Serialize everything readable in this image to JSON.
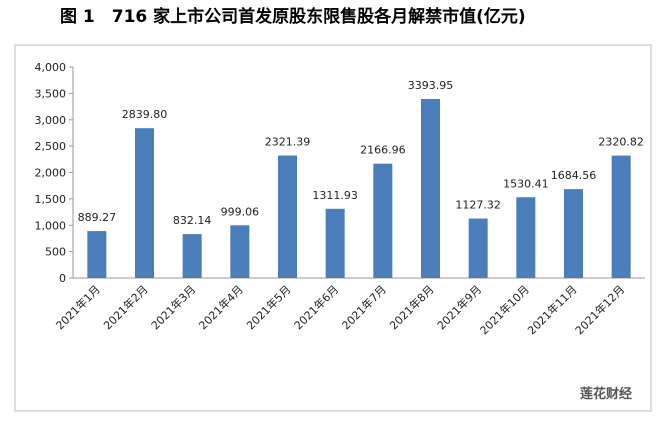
{
  "chart_data": {
    "type": "bar",
    "title": "图 1　716 家上市公司首发原股东限售股各月解禁市值(亿元)",
    "categories": [
      "2021年1月",
      "2021年2月",
      "2021年3月",
      "2021年4月",
      "2021年5月",
      "2021年6月",
      "2021年7月",
      "2021年8月",
      "2021年9月",
      "2021年10月",
      "2021年11月",
      "2021年12月"
    ],
    "values": [
      889.27,
      2839.8,
      832.14,
      999.06,
      2321.39,
      1311.93,
      2166.96,
      3393.95,
      1127.32,
      1530.41,
      1684.56,
      2320.82
    ],
    "value_labels": [
      "889.27",
      "2839.80",
      "832.14",
      "999.06",
      "2321.39",
      "1311.93",
      "2166.96",
      "3393.95",
      "1127.32",
      "1530.41",
      "1684.56",
      "2320.82"
    ],
    "color": "#4a7ebb",
    "ylim": [
      0,
      4000
    ],
    "yticks": [
      0,
      500,
      {
        "value": 1000,
        "label": "1,000"
      },
      {
        "value": 1500,
        "label": "1,500"
      },
      {
        "value": 2000,
        "label": "2,000"
      },
      {
        "value": 2500,
        "label": "2,500"
      },
      {
        "value": 3000,
        "label": "3,000"
      },
      {
        "value": 3500,
        "label": "3,500"
      },
      {
        "value": 4000,
        "label": "4,000"
      }
    ],
    "grid": false,
    "annotation": "莲花财经"
  }
}
